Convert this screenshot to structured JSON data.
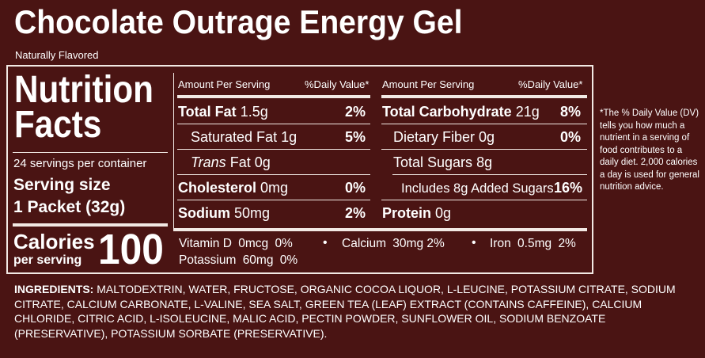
{
  "product": {
    "title": "Chocolate Outrage Energy Gel",
    "subtitle": "Naturally Flavored"
  },
  "panel": {
    "heading_line1": "Nutrition",
    "heading_line2": "Facts",
    "servings_per_container": "24 servings per container",
    "serving_size_label": "Serving size",
    "serving_size_value": "1 Packet (32g)",
    "calories_label": "Calories",
    "calories_sub": "per serving",
    "calories_value": "100"
  },
  "left_col": {
    "header_amount": "Amount Per Serving",
    "header_dv": "%Daily Value*",
    "rows": [
      {
        "name": "Total Fat",
        "amount": "1.5g",
        "dv": "2%"
      },
      {
        "name": "Saturated Fat",
        "amount": "1g",
        "dv": "5%"
      },
      {
        "name": "Trans",
        "name_rest": "Fat",
        "amount": "0g",
        "dv": ""
      },
      {
        "name": "Cholesterol",
        "amount": "0mg",
        "dv": "0%"
      },
      {
        "name": "Sodium",
        "amount": "50mg",
        "dv": "2%"
      }
    ]
  },
  "right_col": {
    "header_amount": "Amount Per Serving",
    "header_dv": "%Daily Value*",
    "rows": [
      {
        "name": "Total Carbohydrate",
        "amount": "21g",
        "dv": "8%"
      },
      {
        "name": "Dietary Fiber",
        "amount": "0g",
        "dv": "0%"
      },
      {
        "name": "Total Sugars",
        "amount": "8g",
        "dv": ""
      },
      {
        "name": "Includes 8g Added Sugars",
        "amount": "",
        "dv": "16%"
      },
      {
        "name": "Protein",
        "amount": "0g",
        "dv": ""
      }
    ]
  },
  "vitamins": {
    "vitd": "Vitamin D",
    "vitd_amt": "0mcg",
    "vitd_dv": "0%",
    "bullet": "•",
    "calcium": "Calcium",
    "calcium_amt": "30mg",
    "calcium_dv": "2%",
    "iron": "Iron",
    "iron_amt": "0.5mg",
    "iron_dv": "2%",
    "potassium": "Potassium",
    "potassium_amt": "60mg",
    "potassium_dv": "0%"
  },
  "footnote": "*The % Daily Value (DV) tells you how much a nutrient in a serving of food contributes to a daily diet. 2,000 calories a day is used for general nutrition advice.",
  "ingredients": {
    "label": "INGREDIENTS:",
    "text": "MALTODEXTRIN, WATER, FRUCTOSE, ORGANIC COCOA LIQUOR, L-LEUCINE, POTASSIUM CITRATE, SODIUM CITRATE, CALCIUM CARBONATE, L-VALINE, SEA SALT, GREEN TEA (LEAF) EXTRACT (CONTAINS CAFFEINE), CALCIUM CHLORIDE, CITRIC ACID, L-ISOLEUCINE, MALIC ACID, PECTIN POWDER, SUNFLOWER OIL, SODIUM BENZOATE (PRESERVATIVE), POTASSIUM SORBATE (PRESERVATIVE)."
  },
  "colors": {
    "background": "#4a1413",
    "text": "#ffffff",
    "rule": "#f2e9e4"
  }
}
